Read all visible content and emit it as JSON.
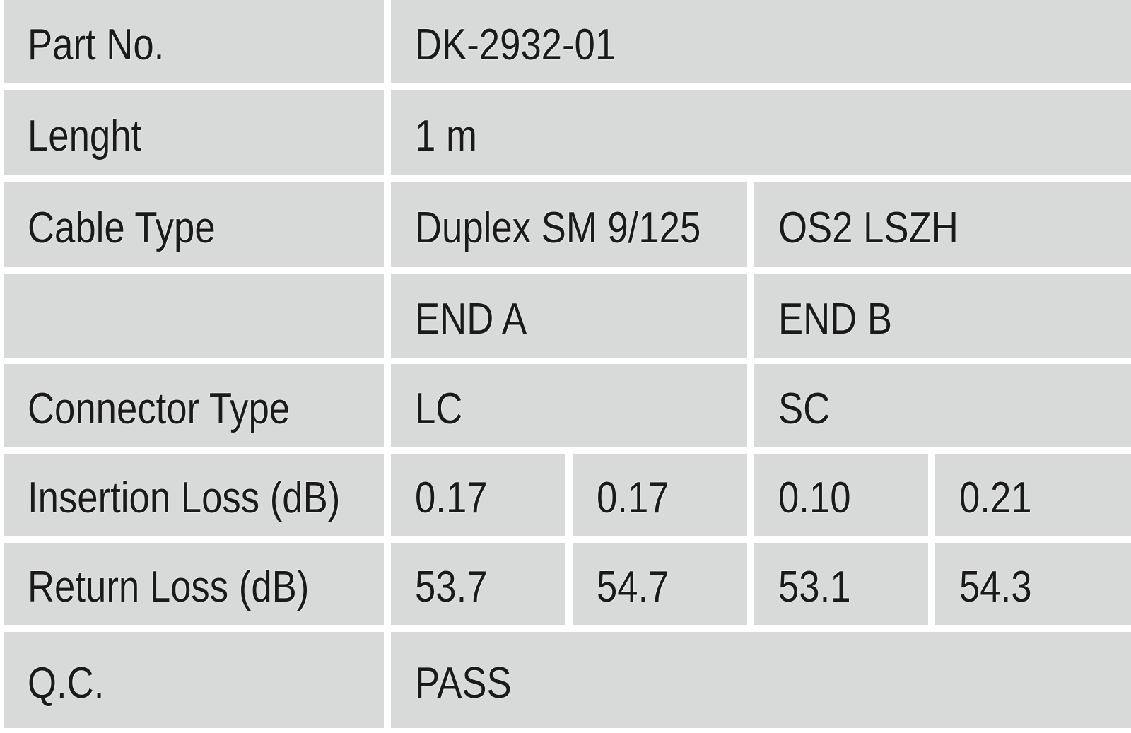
{
  "colors": {
    "cell_bg": "#d7dad8",
    "page_bg": "#ffffff",
    "text": "#1a1a1a"
  },
  "rows": [
    {
      "label": "Part No.",
      "value": "DK-2932-01"
    },
    {
      "label": "Lenght",
      "value": "1 m"
    },
    {
      "label": "Cable Type",
      "value_a": "Duplex SM 9/125",
      "value_b": "OS2 LSZH"
    },
    {
      "label": "",
      "value_a": "END A",
      "value_b": "END B"
    },
    {
      "label": "Connector Type",
      "value_a": "LC",
      "value_b": "SC"
    },
    {
      "label": "Insertion Loss (dB)",
      "values": [
        "0.17",
        "0.17",
        "0.10",
        "0.21"
      ]
    },
    {
      "label": "Return Loss (dB)",
      "values": [
        "53.7",
        "54.7",
        "53.1",
        "54.3"
      ]
    },
    {
      "label": "Q.C.",
      "value": "PASS"
    }
  ]
}
